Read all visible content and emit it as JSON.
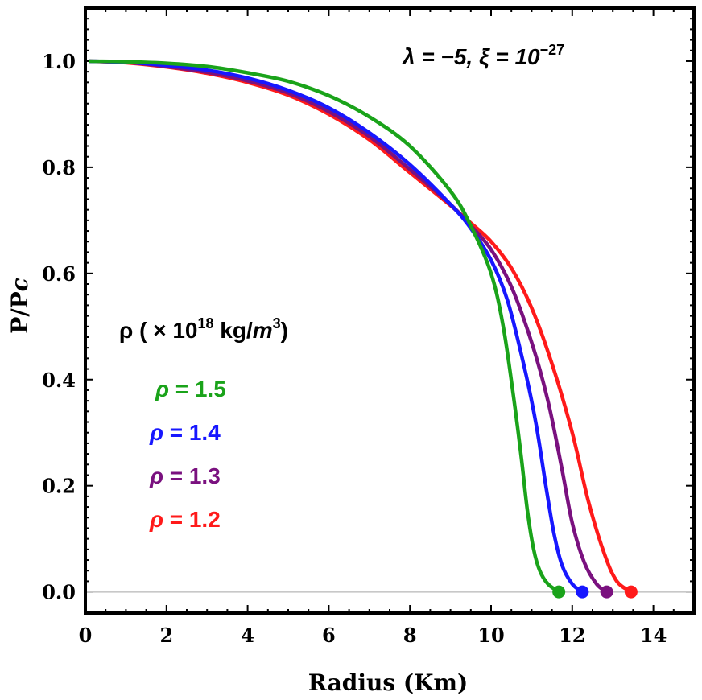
{
  "chart_data": {
    "type": "line",
    "xlabel": "Radius (Km)",
    "ylabel_main": "P/P",
    "ylabel_sub": "c",
    "xlim": [
      0,
      15
    ],
    "ylim": [
      -0.04,
      1.1
    ],
    "x_ticks": [
      0,
      2,
      4,
      6,
      8,
      10,
      12,
      14
    ],
    "x_tick_labels": [
      "0",
      "2",
      "4",
      "6",
      "8",
      "10",
      "12",
      "14"
    ],
    "y_ticks": [
      0.0,
      0.2,
      0.4,
      0.6,
      0.8,
      1.0
    ],
    "y_tick_labels": [
      "0.0",
      "0.2",
      "0.4",
      "0.6",
      "0.8",
      "1.0"
    ],
    "grid": false,
    "baseline_y": 0,
    "annotation": {
      "lambda_text": "λ = −5, ξ = 10",
      "exponent": "−27"
    },
    "legend": {
      "placement": "left-middle",
      "title_main": "ρ ( × 10",
      "title_exp": "18",
      "title_unit": " kg/",
      "title_m": "m",
      "title_m_exp": "3",
      "title_close": ")",
      "entries": [
        "ρ = 1.5",
        "ρ = 1.4",
        "ρ = 1.3",
        "ρ = 1.2"
      ]
    },
    "series": [
      {
        "color": "#1aa31a",
        "endpoint": [
          11.67,
          0.0
        ],
        "points": [
          [
            0.1,
            1.0
          ],
          [
            1,
            0.999
          ],
          [
            2,
            0.996
          ],
          [
            3,
            0.99
          ],
          [
            4,
            0.978
          ],
          [
            5,
            0.962
          ],
          [
            6,
            0.935
          ],
          [
            7,
            0.895
          ],
          [
            8,
            0.84
          ],
          [
            9,
            0.755
          ],
          [
            9.5,
            0.69
          ],
          [
            10,
            0.6
          ],
          [
            10.3,
            0.5
          ],
          [
            10.55,
            0.37
          ],
          [
            10.75,
            0.25
          ],
          [
            10.9,
            0.15
          ],
          [
            11.05,
            0.08
          ],
          [
            11.2,
            0.04
          ],
          [
            11.4,
            0.015
          ],
          [
            11.67,
            0.0
          ]
        ]
      },
      {
        "color": "#1717ff",
        "endpoint": [
          12.25,
          0.0
        ],
        "points": [
          [
            0.1,
            1.0
          ],
          [
            1,
            0.998
          ],
          [
            2,
            0.992
          ],
          [
            3,
            0.983
          ],
          [
            4,
            0.968
          ],
          [
            5,
            0.945
          ],
          [
            6,
            0.912
          ],
          [
            7,
            0.865
          ],
          [
            8,
            0.805
          ],
          [
            9,
            0.73
          ],
          [
            9.5,
            0.685
          ],
          [
            10,
            0.625
          ],
          [
            10.4,
            0.55
          ],
          [
            10.8,
            0.43
          ],
          [
            11.1,
            0.32
          ],
          [
            11.35,
            0.2
          ],
          [
            11.55,
            0.11
          ],
          [
            11.75,
            0.05
          ],
          [
            12.0,
            0.015
          ],
          [
            12.25,
            0.0
          ]
        ]
      },
      {
        "color": "#7a117f",
        "endpoint": [
          12.85,
          0.0
        ],
        "points": [
          [
            0.1,
            1.0
          ],
          [
            1,
            0.998
          ],
          [
            2,
            0.99
          ],
          [
            3,
            0.979
          ],
          [
            4,
            0.963
          ],
          [
            5,
            0.94
          ],
          [
            6,
            0.905
          ],
          [
            7,
            0.858
          ],
          [
            8,
            0.796
          ],
          [
            9,
            0.73
          ],
          [
            9.5,
            0.69
          ],
          [
            10,
            0.645
          ],
          [
            10.5,
            0.575
          ],
          [
            11,
            0.47
          ],
          [
            11.4,
            0.36
          ],
          [
            11.75,
            0.23
          ],
          [
            12.0,
            0.13
          ],
          [
            12.3,
            0.055
          ],
          [
            12.6,
            0.015
          ],
          [
            12.85,
            0.0
          ]
        ]
      },
      {
        "color": "#ff1a1a",
        "endpoint": [
          13.45,
          0.0
        ],
        "points": [
          [
            0.1,
            1.0
          ],
          [
            1,
            0.997
          ],
          [
            2,
            0.989
          ],
          [
            3,
            0.977
          ],
          [
            4,
            0.96
          ],
          [
            5,
            0.936
          ],
          [
            6,
            0.9
          ],
          [
            7,
            0.852
          ],
          [
            8,
            0.79
          ],
          [
            9,
            0.728
          ],
          [
            9.5,
            0.695
          ],
          [
            10,
            0.66
          ],
          [
            10.5,
            0.61
          ],
          [
            11,
            0.535
          ],
          [
            11.5,
            0.43
          ],
          [
            12,
            0.3
          ],
          [
            12.4,
            0.17
          ],
          [
            12.8,
            0.07
          ],
          [
            13.1,
            0.02
          ],
          [
            13.45,
            0.0
          ]
        ]
      }
    ]
  }
}
